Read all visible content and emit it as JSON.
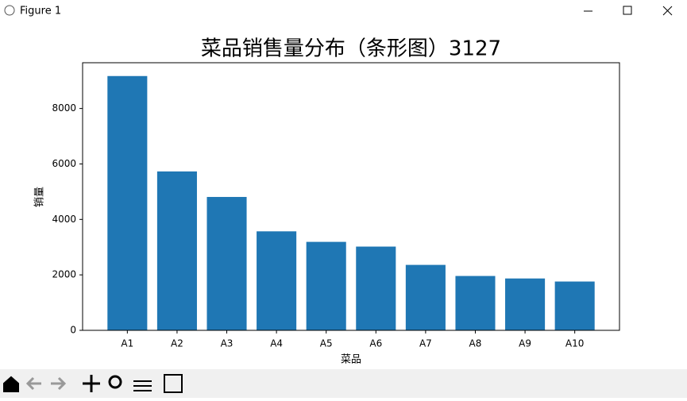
{
  "window_title": "Figure 1",
  "chart_data": {
    "type": "bar",
    "title": "菜品销售量分布（条形图）3127",
    "x_label": "菜品",
    "y_label": "销量",
    "categories": [
      "A1",
      "A2",
      "A3",
      "A4",
      "A5",
      "A6",
      "A7",
      "A8",
      "A9",
      "A10"
    ],
    "values": [
      9170,
      5730,
      4810,
      3570,
      3190,
      3020,
      2360,
      1960,
      1870,
      1760
    ],
    "color": "#1f77b4",
    "ylim": [
      0,
      9650
    ],
    "yticks": [
      0,
      2000,
      4000,
      6000,
      8000
    ],
    "grid": false
  }
}
